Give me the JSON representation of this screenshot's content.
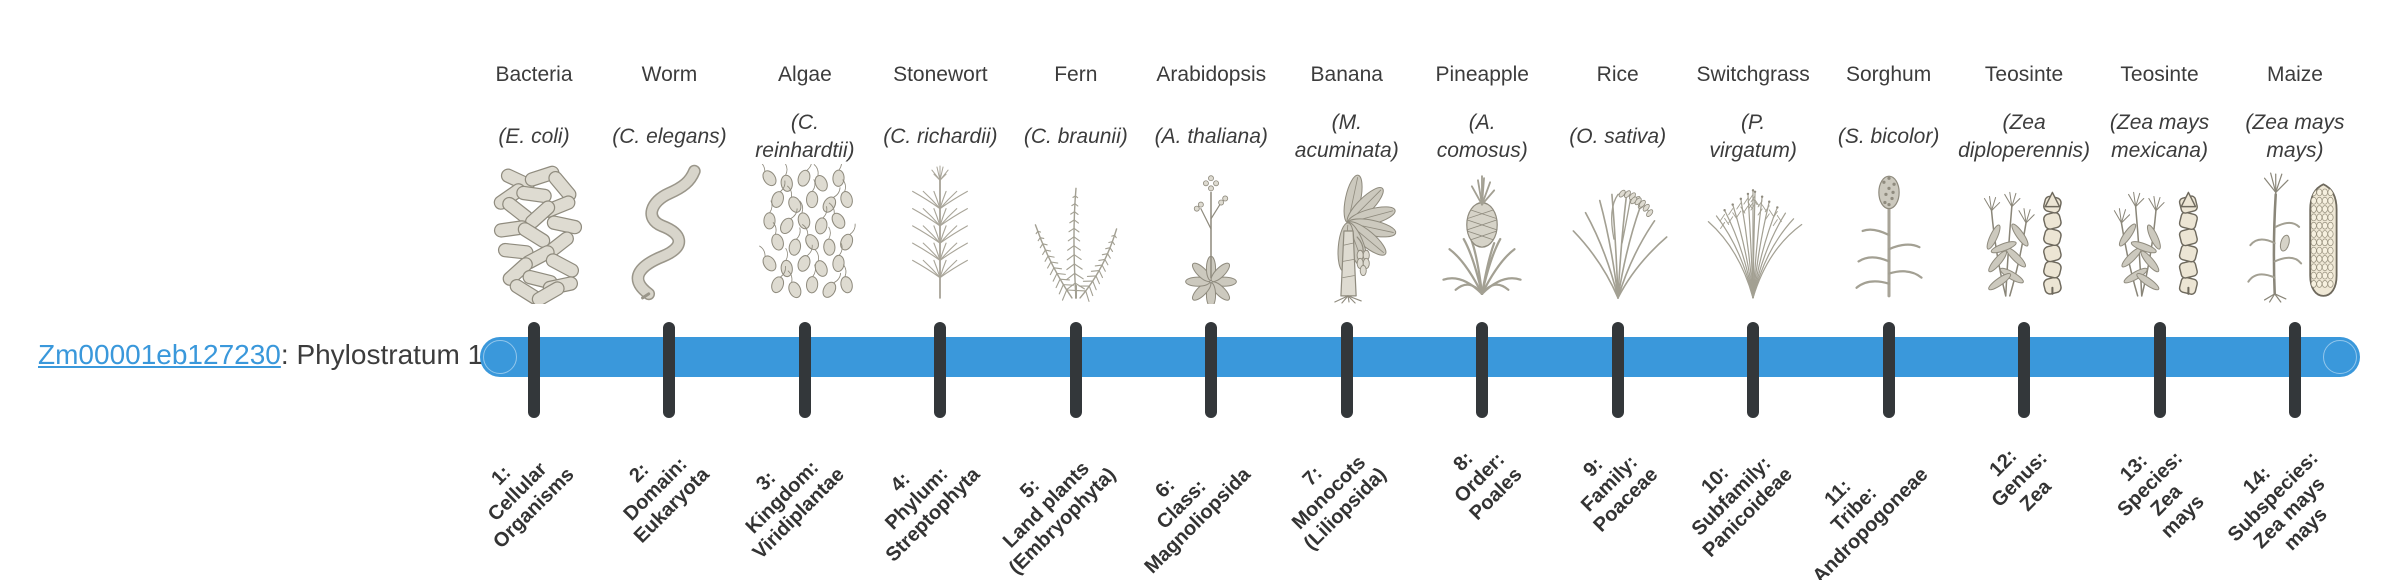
{
  "figure": {
    "gene": {
      "id": "Zm00001eb127230",
      "separator": ": ",
      "stratum_label": "Phylostratum 1"
    },
    "colors": {
      "bar": "#3a98db",
      "tick": "#33373a",
      "link": "#3a98db",
      "ink": "#3c3c3c"
    },
    "strata": [
      {
        "num": 1,
        "common_name": "Bacteria",
        "scientific_lines": [
          "(E. coli)"
        ],
        "tick_lines": [
          "1:",
          "Cellular",
          "Organisms"
        ],
        "icon": "bacteria-icon"
      },
      {
        "num": 2,
        "common_name": "Worm",
        "scientific_lines": [
          "(C. elegans)"
        ],
        "tick_lines": [
          "2:",
          "Domain:",
          "Eukaryota"
        ],
        "icon": "worm-icon"
      },
      {
        "num": 3,
        "common_name": "Algae",
        "scientific_lines": [
          "(C.",
          "reinhardtii)"
        ],
        "tick_lines": [
          "3:",
          "Kingdom:",
          "Viridiplantae"
        ],
        "icon": "algae-icon"
      },
      {
        "num": 4,
        "common_name": "Stonewort",
        "scientific_lines": [
          "(C. richardii)"
        ],
        "tick_lines": [
          "4:",
          "Phylum:",
          "Streptophyta"
        ],
        "icon": "stonewort-icon"
      },
      {
        "num": 5,
        "common_name": "Fern",
        "scientific_lines": [
          "(C. braunii)"
        ],
        "tick_lines": [
          "5:",
          "Land plants",
          "(Embryophyta)"
        ],
        "icon": "fern-icon"
      },
      {
        "num": 6,
        "common_name": "Arabidopsis",
        "scientific_lines": [
          "(A. thaliana)"
        ],
        "tick_lines": [
          "6:",
          "Class:",
          "Magnoliopsida"
        ],
        "icon": "arabidopsis-icon"
      },
      {
        "num": 7,
        "common_name": "Banana",
        "scientific_lines": [
          "(M.",
          "acuminata)"
        ],
        "tick_lines": [
          "7:",
          "Monocots",
          "(Liliopsida)"
        ],
        "icon": "banana-icon"
      },
      {
        "num": 8,
        "common_name": "Pineapple",
        "scientific_lines": [
          "(A.",
          "comosus)"
        ],
        "tick_lines": [
          "8:",
          "Order:",
          "Poales"
        ],
        "icon": "pineapple-icon"
      },
      {
        "num": 9,
        "common_name": "Rice",
        "scientific_lines": [
          "(O. sativa)"
        ],
        "tick_lines": [
          "9:",
          "Family:",
          "Poaceae"
        ],
        "icon": "rice-icon"
      },
      {
        "num": 10,
        "common_name": "Switchgrass",
        "scientific_lines": [
          "(P.",
          "virgatum)"
        ],
        "tick_lines": [
          "10:",
          "Subfamily:",
          "Panicoideae"
        ],
        "icon": "switchgrass-icon"
      },
      {
        "num": 11,
        "common_name": "Sorghum",
        "scientific_lines": [
          "(S. bicolor)"
        ],
        "tick_lines": [
          "11:",
          "Tribe:",
          "Andropogoneae"
        ],
        "icon": "sorghum-icon"
      },
      {
        "num": 12,
        "common_name": "Teosinte",
        "scientific_lines": [
          "(Zea",
          "diploperennis)"
        ],
        "tick_lines": [
          "12:",
          "Genus:",
          "Zea"
        ],
        "icon": "teosinte-diploperennis-icon"
      },
      {
        "num": 13,
        "common_name": "Teosinte",
        "scientific_lines": [
          "(Zea mays",
          "mexicana)"
        ],
        "tick_lines": [
          "13:",
          "Species:",
          "Zea",
          "mays"
        ],
        "icon": "teosinte-mexicana-icon"
      },
      {
        "num": 14,
        "common_name": "Maize",
        "scientific_lines": [
          "(Zea mays",
          "mays)"
        ],
        "tick_lines": [
          "14:",
          "Subspecies:",
          "Zea mays",
          "mays"
        ],
        "icon": "maize-icon"
      }
    ]
  }
}
